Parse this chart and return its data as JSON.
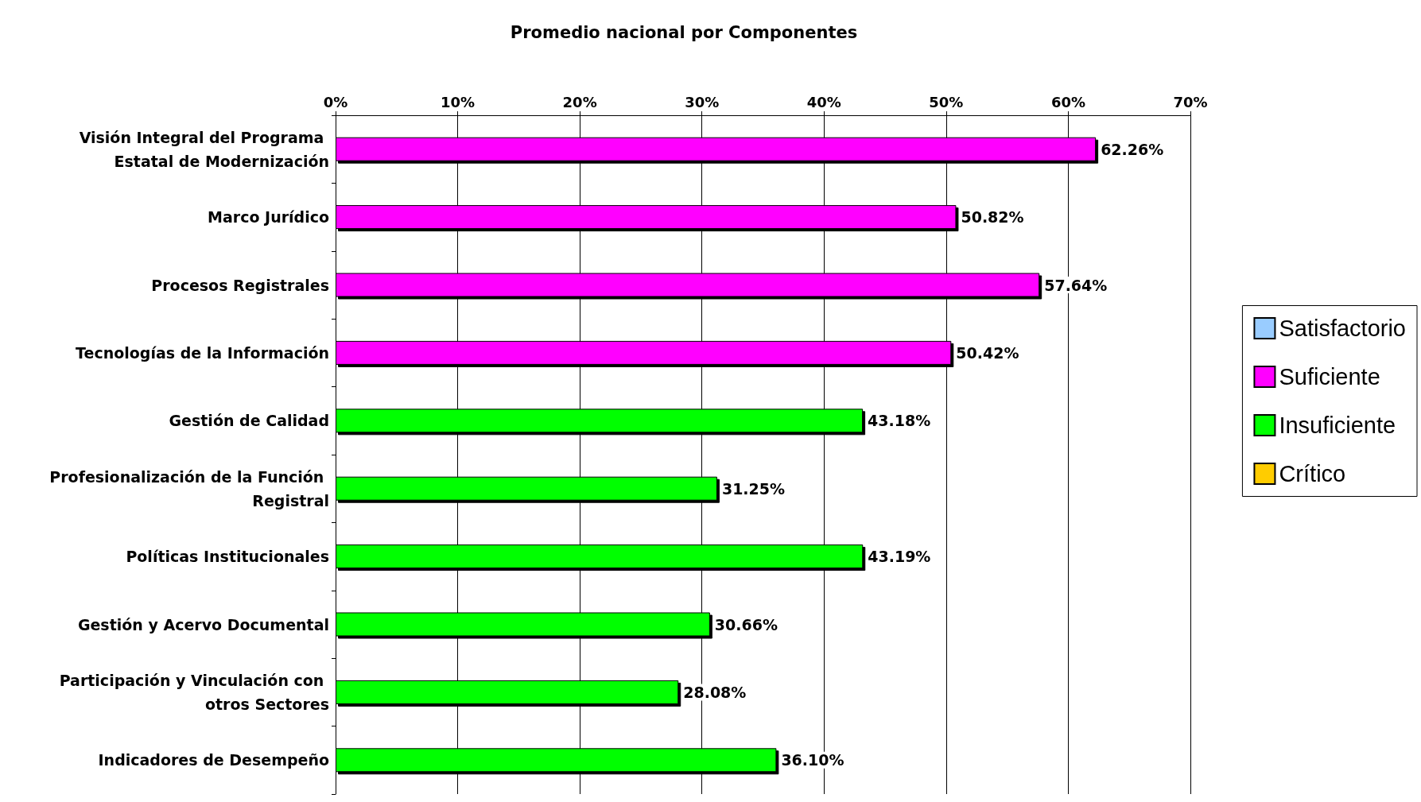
{
  "chart_data": {
    "type": "bar",
    "orientation": "horizontal",
    "stacked": true,
    "title": "Promedio nacional por Componentes",
    "categories": [
      "Visión Integral del Programa Estatal de Modernización",
      "Marco Jurídico",
      "Procesos Registrales",
      "Tecnologías de la Información",
      "Gestión de Calidad",
      "Profesionalización de la Función Registral",
      "Políticas Institucionales",
      "Gestión y Acervo Documental",
      "Participación y Vinculación con otros Sectores",
      "Indicadores de Desempeño"
    ],
    "series": [
      {
        "name": "Satisfactorio",
        "color": "#99ccff",
        "values": [
          null,
          null,
          null,
          null,
          null,
          null,
          null,
          null,
          null,
          null
        ]
      },
      {
        "name": "Suficiente",
        "color": "#ff00ff",
        "values": [
          62.26,
          50.82,
          57.64,
          50.42,
          null,
          null,
          null,
          null,
          null,
          null
        ],
        "value_labels": [
          "62.26%",
          "50.82%",
          "57.64%",
          "50.42%",
          null,
          null,
          null,
          null,
          null,
          null
        ]
      },
      {
        "name": "Insuficiente",
        "color": "#00ff00",
        "values": [
          null,
          null,
          null,
          null,
          43.18,
          31.25,
          43.19,
          30.66,
          28.08,
          36.1
        ],
        "value_labels": [
          null,
          null,
          null,
          null,
          "43.18%",
          "31.25%",
          "43.19%",
          "30.66%",
          "28.08%",
          "36.10%"
        ]
      },
      {
        "name": "Crítico",
        "color": "#ffcc00",
        "values": [
          null,
          null,
          null,
          null,
          null,
          null,
          null,
          null,
          null,
          null
        ]
      }
    ],
    "xlim": [
      0,
      70
    ],
    "xticks": [
      {
        "value": 0,
        "label": "0%"
      },
      {
        "value": 10,
        "label": "10%"
      },
      {
        "value": 20,
        "label": "20%"
      },
      {
        "value": 30,
        "label": "30%"
      },
      {
        "value": 40,
        "label": "40%"
      },
      {
        "value": 50,
        "label": "50%"
      },
      {
        "value": 60,
        "label": "60%"
      },
      {
        "value": 70,
        "label": "70%"
      }
    ],
    "grid": "x",
    "legend": "right"
  }
}
